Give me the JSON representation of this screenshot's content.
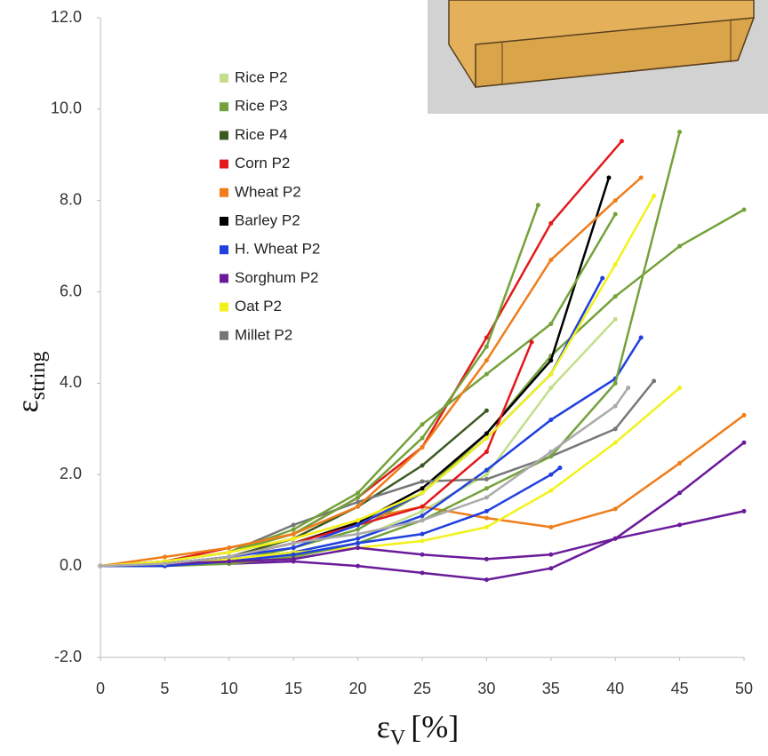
{
  "chart_data": {
    "type": "line",
    "x_label": {
      "symbol": "ε",
      "sub": "V",
      "rest": "[%]"
    },
    "y_label": {
      "symbol": "ε",
      "sub": "string"
    },
    "xlim": [
      0,
      50
    ],
    "ylim": [
      -2,
      12
    ],
    "xticks": [
      0,
      5,
      10,
      15,
      20,
      25,
      30,
      35,
      40,
      45,
      50
    ],
    "yticks": [
      {
        "value": -2,
        "label": "-2.0"
      },
      {
        "value": 0,
        "label": "0.0"
      },
      {
        "value": 2,
        "label": "2.0"
      },
      {
        "value": 4,
        "label": "4.0"
      },
      {
        "value": 6,
        "label": "6.0"
      },
      {
        "value": 8,
        "label": "8.0"
      },
      {
        "value": 10,
        "label": "10.0"
      },
      {
        "value": 12,
        "label": "12.0"
      }
    ],
    "series": [
      {
        "name": "Rice P2",
        "color": "#c3de8a",
        "x": [
          0,
          5,
          10,
          15,
          20,
          25,
          30,
          35,
          40
        ],
        "values": [
          0,
          0.05,
          0.1,
          0.3,
          0.6,
          1.2,
          2.0,
          3.9,
          5.4
        ]
      },
      {
        "name": "Rice P3",
        "color": "#74a23a",
        "x": [
          0,
          5,
          10,
          15,
          20,
          25,
          30,
          35,
          40,
          45,
          50
        ],
        "values": [
          0,
          0,
          0.1,
          0.4,
          0.8,
          1.6,
          2.9,
          4.6,
          5.9,
          7.0,
          7.8
        ]
      },
      {
        "name": "Rice P4",
        "color": "#3b5a20",
        "x": [
          0,
          5,
          10,
          15,
          20,
          25,
          30
        ],
        "values": [
          0,
          0.05,
          0.2,
          0.6,
          1.3,
          2.2,
          3.4
        ]
      },
      {
        "name": "Corn P2",
        "color": "#e3191c",
        "x": [
          0,
          5,
          10,
          15,
          20,
          25,
          30,
          35,
          40.5
        ],
        "values": [
          0,
          0.1,
          0.4,
          0.7,
          1.5,
          2.6,
          5.0,
          7.5,
          9.3
        ]
      },
      {
        "name": "Wheat P2",
        "color": "#ef7d1a",
        "x": [
          0,
          5,
          10,
          15,
          20,
          25,
          30,
          35,
          40,
          45,
          50
        ],
        "values": [
          0,
          0.1,
          0.3,
          0.6,
          1.0,
          1.3,
          1.05,
          0.85,
          1.25,
          2.25,
          3.3
        ]
      },
      {
        "name": "Barley P2",
        "color": "#000000",
        "x": [
          0,
          5,
          10,
          15,
          20,
          25,
          30,
          35,
          39.5
        ],
        "values": [
          0,
          0.05,
          0.2,
          0.5,
          0.95,
          1.7,
          2.9,
          4.5,
          8.5
        ]
      },
      {
        "name": "H. Wheat P2",
        "color": "#1f3fe0",
        "x": [
          0,
          5,
          10,
          15,
          20,
          25,
          30,
          35,
          40,
          42
        ],
        "values": [
          0,
          0.05,
          0.15,
          0.3,
          0.6,
          1.1,
          2.1,
          3.2,
          4.1,
          5.0
        ]
      },
      {
        "name": "Sorghum P2",
        "color": "#6a1b9a",
        "x": [
          0,
          5,
          10,
          15,
          20,
          25,
          30,
          35,
          40,
          45,
          50
        ],
        "values": [
          0,
          0.02,
          0.05,
          0.1,
          0,
          -0.15,
          -0.3,
          -0.05,
          0.6,
          1.6,
          2.7
        ]
      },
      {
        "name": "Oat P2",
        "color": "#f2f21a",
        "x": [
          0,
          5,
          10,
          15,
          20,
          25,
          30,
          35,
          40,
          45
        ],
        "values": [
          0,
          0.05,
          0.15,
          0.3,
          0.4,
          0.55,
          0.85,
          1.65,
          2.7,
          3.9
        ]
      },
      {
        "name": "Millet P2",
        "color": "#777777",
        "x": [
          0,
          5,
          10,
          15,
          20,
          25,
          30,
          35,
          40,
          43
        ],
        "values": [
          0,
          0.1,
          0.3,
          0.9,
          1.4,
          1.85,
          1.9,
          2.4,
          3.0,
          4.05
        ]
      },
      {
        "color": "#74a23a",
        "x": [
          0,
          5,
          10,
          15,
          20,
          25,
          30,
          34
        ],
        "values": [
          0,
          0.1,
          0.3,
          0.7,
          1.5,
          2.8,
          4.8,
          7.9
        ]
      },
      {
        "color": "#74a23a",
        "x": [
          0,
          5,
          10,
          15,
          20,
          25,
          30,
          35,
          40
        ],
        "values": [
          0,
          0.1,
          0.3,
          0.8,
          1.6,
          3.1,
          4.2,
          5.3,
          7.7
        ]
      },
      {
        "color": "#74a23a",
        "x": [
          0,
          5,
          10,
          15,
          20,
          25,
          30,
          35,
          40,
          45
        ],
        "values": [
          0,
          0,
          0.05,
          0.2,
          0.5,
          1.0,
          1.7,
          2.4,
          4.0,
          9.5
        ]
      },
      {
        "color": "#e3191c",
        "x": [
          0,
          5,
          10,
          15,
          20,
          25,
          30,
          33.5
        ],
        "values": [
          0,
          0.05,
          0.2,
          0.5,
          0.9,
          1.3,
          2.5,
          4.9
        ]
      },
      {
        "color": "#ef7d1a",
        "x": [
          0,
          5,
          10,
          15,
          20,
          25,
          30,
          35,
          40,
          42
        ],
        "values": [
          0,
          0.2,
          0.4,
          0.7,
          1.3,
          2.6,
          4.5,
          6.7,
          8.0,
          8.5
        ]
      },
      {
        "color": "#1f3fe0",
        "x": [
          0,
          5,
          10,
          15,
          20,
          25,
          30,
          35,
          35.7
        ],
        "values": [
          0,
          0,
          0.1,
          0.25,
          0.5,
          0.7,
          1.2,
          2.0,
          2.15
        ]
      },
      {
        "color": "#1f3fe0",
        "x": [
          0,
          5,
          10,
          15,
          20,
          25,
          30,
          35,
          39
        ],
        "values": [
          0,
          0.05,
          0.2,
          0.4,
          0.9,
          1.6,
          2.8,
          4.2,
          6.3
        ]
      },
      {
        "color": "#6a1b9a",
        "x": [
          0,
          5,
          10,
          15,
          20,
          25,
          30,
          35,
          40,
          45,
          50
        ],
        "values": [
          0,
          0.05,
          0.1,
          0.15,
          0.4,
          0.25,
          0.15,
          0.25,
          0.6,
          0.9,
          1.2
        ]
      },
      {
        "color": "#f2f21a",
        "x": [
          0,
          5,
          10,
          15,
          20,
          25,
          30,
          35,
          40,
          43
        ],
        "values": [
          0,
          0.1,
          0.3,
          0.6,
          1.0,
          1.6,
          2.8,
          4.2,
          6.6,
          8.1
        ]
      },
      {
        "color": "#aaaaaa",
        "x": [
          0,
          5,
          10,
          15,
          20,
          25,
          30,
          35,
          40,
          41
        ],
        "values": [
          0,
          0.05,
          0.2,
          0.5,
          0.7,
          1.0,
          1.5,
          2.5,
          3.5,
          3.9
        ]
      }
    ]
  }
}
